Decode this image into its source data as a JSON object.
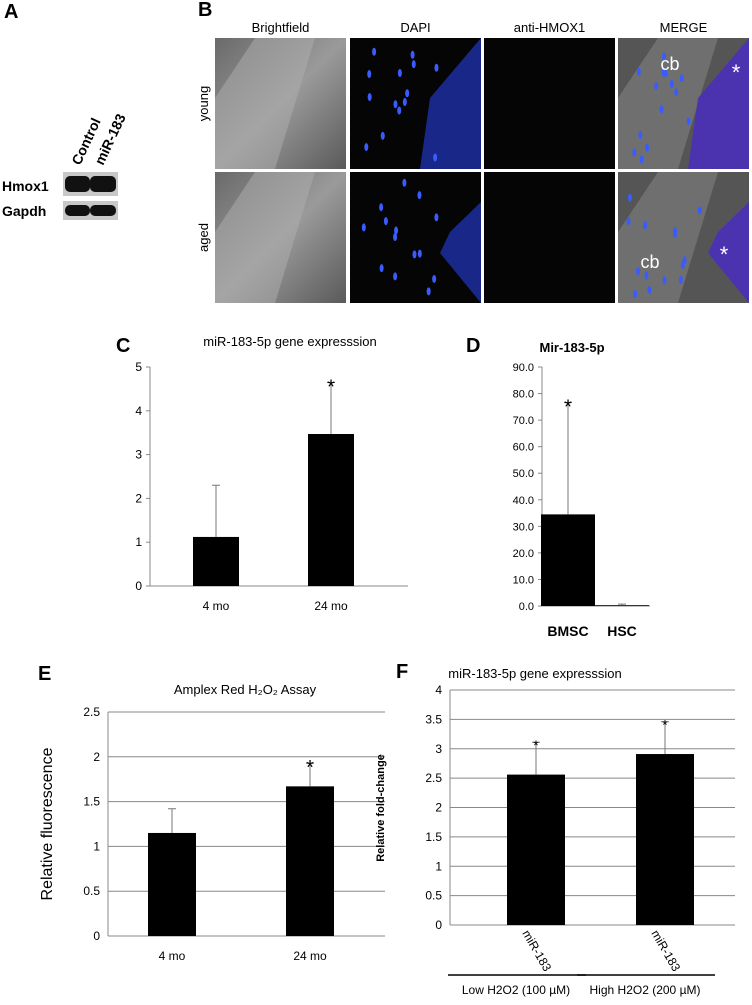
{
  "panel_labels": [
    "A",
    "B",
    "C",
    "D",
    "E",
    "F"
  ],
  "western_blot": {
    "columns": [
      "Control",
      "miR-183"
    ],
    "rows": [
      "Hmox1",
      "Gapdh"
    ]
  },
  "microscopy": {
    "columns": [
      "Brightfield",
      "DAPI",
      "anti-HMOX1",
      "MERGE"
    ],
    "rows": [
      "young",
      "aged"
    ],
    "annotations": [
      "cb",
      "*",
      "cb",
      "*"
    ]
  },
  "chart_data": [
    {
      "type": "bar",
      "title": "miR-183-5p gene expresssion",
      "categories": [
        "4 mo",
        "24 mo"
      ],
      "values": [
        1.12,
        3.47
      ],
      "errors": [
        1.18,
        1.18
      ],
      "significance": [
        null,
        "*"
      ],
      "color": "#000000",
      "ylim": [
        0,
        5
      ],
      "yticks": [
        0,
        1,
        2,
        3,
        4,
        5
      ],
      "grid": false
    },
    {
      "type": "bar",
      "title": "Mir-183-5p",
      "categories": [
        "BMSC",
        "HSC"
      ],
      "values": [
        34.5,
        0.3
      ],
      "errors": [
        42.2,
        0.4
      ],
      "significance": [
        "*",
        null
      ],
      "color": "#000000",
      "ylim": [
        0,
        90
      ],
      "yticks": [
        {
          "value": 0,
          "label": "0.0"
        },
        {
          "value": 10,
          "label": "10.0"
        },
        {
          "value": 20,
          "label": "20.0"
        },
        {
          "value": 30,
          "label": "30.0"
        },
        {
          "value": 40,
          "label": "40.0"
        },
        {
          "value": 50,
          "label": "50.0"
        },
        {
          "value": 60,
          "label": "60.0"
        },
        {
          "value": 70,
          "label": "70.0"
        },
        {
          "value": 80,
          "label": "80.0"
        },
        {
          "value": 90,
          "label": "90.0"
        }
      ],
      "grid": false
    },
    {
      "type": "bar",
      "title": "Amplex Red H₂O₂ Assay",
      "y_label": "Relative fluorescence",
      "categories": [
        "4 mo",
        "24 mo"
      ],
      "values": [
        1.15,
        1.67
      ],
      "errors": [
        0.27,
        0.26
      ],
      "significance": [
        null,
        "*"
      ],
      "color": "#000000",
      "ylim": [
        0,
        2.5
      ],
      "yticks": [
        0,
        0.5,
        1,
        1.5,
        2,
        2.5
      ],
      "grid": true
    },
    {
      "type": "bar",
      "title": "miR-183-5p gene expresssion",
      "y_label": "Relative fold-change",
      "categories": [
        "miR-183",
        "miR-183"
      ],
      "groups": [
        "Low H2O2 (100 µM)",
        "High H2O2 (200 µM)"
      ],
      "values": [
        2.56,
        2.91
      ],
      "errors": [
        0.55,
        0.55
      ],
      "significance": [
        "*",
        "*"
      ],
      "color": "#000000",
      "ylim": [
        0,
        4
      ],
      "yticks": [
        0,
        0.5,
        1,
        1.5,
        2,
        2.5,
        3,
        3.5,
        4
      ],
      "grid": true
    }
  ]
}
